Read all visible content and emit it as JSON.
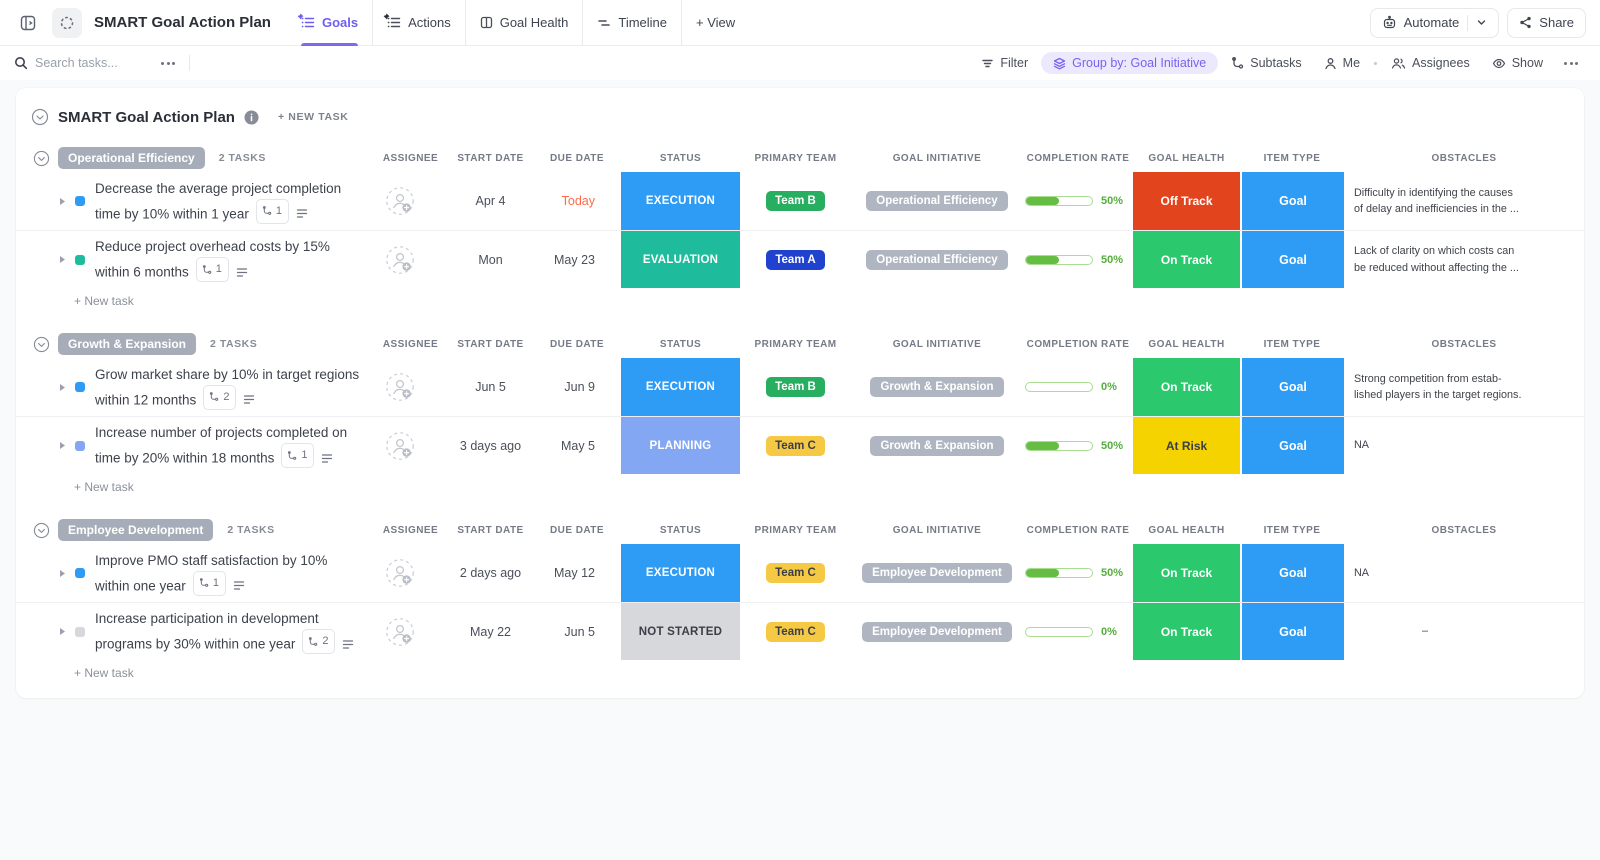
{
  "header": {
    "title": "SMART Goal Action Plan",
    "tabs": [
      {
        "label": "Goals",
        "icon": "list",
        "pinned": true,
        "active": true
      },
      {
        "label": "Actions",
        "icon": "list",
        "pinned": true,
        "active": false
      },
      {
        "label": "Goal Health",
        "icon": "board",
        "pinned": false,
        "active": false
      },
      {
        "label": "Timeline",
        "icon": "timeline",
        "pinned": false,
        "active": false
      },
      {
        "label": "View",
        "icon": "plus",
        "pinned": false,
        "active": false,
        "is_add": true
      }
    ],
    "automate_label": "Automate",
    "share_label": "Share"
  },
  "toolbar": {
    "search_placeholder": "Search tasks...",
    "filter_label": "Filter",
    "group_by_label": "Group by: Goal Initiative",
    "subtasks_label": "Subtasks",
    "me_label": "Me",
    "assignees_label": "Assignees",
    "show_label": "Show"
  },
  "page": {
    "title": "SMART Goal Action Plan",
    "new_task_label": "+ NEW TASK",
    "add_task_label": "+ New task"
  },
  "table": {
    "columns": [
      "ASSIGNEE",
      "START DATE",
      "DUE DATE",
      "STATUS",
      "PRIMARY TEAM",
      "GOAL INITIATIVE",
      "COMPLETION RATE",
      "GOAL HEALTH",
      "ITEM TYPE",
      "OBSTACLES"
    ]
  },
  "colors": {
    "accent_purple": "#7c6bf1",
    "execution_blue": "#2e9cf5",
    "evaluation_teal": "#1ebc9c",
    "planning_blue": "#84a7f3",
    "not_started_gray": "#d6d8db",
    "on_track_green": "#2bc86d",
    "off_track_red": "#e2451d",
    "at_risk_yellow": "#f5d300",
    "team_a_blue": "#2042cf",
    "team_b_green": "#27ae60",
    "team_c_yellow": "#f6c944",
    "initiative_gray": "#b0b6c1",
    "progress_green": "#66bd44",
    "today_orange": "#fd6b4c",
    "dark_text": "#3a3f47"
  },
  "groups": [
    {
      "name": "Operational Efficiency",
      "count": "2 TASKS",
      "tasks": [
        {
          "name": "Decrease the average project completion time by 10% within 1 year",
          "subtasks": "1",
          "has_description": false,
          "bullet": "#2e9cf5",
          "start_date": "Apr 4",
          "due_date": "Today",
          "due_today": true,
          "status": {
            "label": "EXECUTION",
            "bg": "#2e9cf5",
            "fg": "#ffffff"
          },
          "team": {
            "label": "Team B",
            "bg": "#27ae60",
            "fg": "#ffffff"
          },
          "initiative": "Operational Efficiency",
          "completion": {
            "pct": 50,
            "label": "50%"
          },
          "health": {
            "label": "Off Track",
            "bg": "#e2451d",
            "fg": "#ffffff"
          },
          "item_type": {
            "label": "Goal",
            "bg": "#2e9cf5",
            "fg": "#ffffff"
          },
          "obstacles": "Difficulty in identifying the causes\nof delay and inefficiencies in the ..."
        },
        {
          "name": "Reduce project overhead costs by 15% within 6 months",
          "subtasks": "1",
          "has_description": true,
          "bullet": "#1ebc9c",
          "start_date": "Mon",
          "due_date": "May 23",
          "due_today": false,
          "status": {
            "label": "EVALUATION",
            "bg": "#1ebc9c",
            "fg": "#ffffff"
          },
          "team": {
            "label": "Team A",
            "bg": "#2042cf",
            "fg": "#ffffff"
          },
          "initiative": "Operational Efficiency",
          "completion": {
            "pct": 50,
            "label": "50%"
          },
          "health": {
            "label": "On Track",
            "bg": "#2bc86d",
            "fg": "#ffffff"
          },
          "item_type": {
            "label": "Goal",
            "bg": "#2e9cf5",
            "fg": "#ffffff"
          },
          "obstacles": "Lack of clarity on which costs can\nbe reduced without affecting the ..."
        }
      ]
    },
    {
      "name": "Growth & Expansion",
      "count": "2 TASKS",
      "tasks": [
        {
          "name": "Grow market share by 10% in target regions within 12 months",
          "subtasks": "2",
          "has_description": false,
          "bullet": "#2e9cf5",
          "start_date": "Jun 5",
          "due_date": "Jun 9",
          "due_today": false,
          "status": {
            "label": "EXECUTION",
            "bg": "#2e9cf5",
            "fg": "#ffffff"
          },
          "team": {
            "label": "Team B",
            "bg": "#27ae60",
            "fg": "#ffffff"
          },
          "initiative": "Growth & Expansion",
          "completion": {
            "pct": 0,
            "label": "0%"
          },
          "health": {
            "label": "On Track",
            "bg": "#2bc86d",
            "fg": "#ffffff"
          },
          "item_type": {
            "label": "Goal",
            "bg": "#2e9cf5",
            "fg": "#ffffff"
          },
          "obstacles": "Strong competition from estab-\nlished players in the target regions."
        },
        {
          "name": "Increase number of projects completed on time by 20% within 18 months",
          "subtasks": "1",
          "has_description": false,
          "bullet": "#84a7f3",
          "start_date": "3 days ago",
          "due_date": "May 5",
          "due_today": false,
          "status": {
            "label": "PLANNING",
            "bg": "#84a7f3",
            "fg": "#ffffff"
          },
          "team": {
            "label": "Team C",
            "bg": "#f6c944",
            "fg": "#3a3f47"
          },
          "initiative": "Growth & Expansion",
          "completion": {
            "pct": 50,
            "label": "50%"
          },
          "health": {
            "label": "At Risk",
            "bg": "#f5d300",
            "fg": "#3a3f47"
          },
          "item_type": {
            "label": "Goal",
            "bg": "#2e9cf5",
            "fg": "#ffffff"
          },
          "obstacles": "NA"
        }
      ]
    },
    {
      "name": "Employee Development",
      "count": "2 TASKS",
      "tasks": [
        {
          "name": "Improve PMO staff satisfaction by 10% within one year",
          "subtasks": "1",
          "has_description": false,
          "bullet": "#2e9cf5",
          "start_date": "2 days ago",
          "due_date": "May 12",
          "due_today": false,
          "status": {
            "label": "EXECUTION",
            "bg": "#2e9cf5",
            "fg": "#ffffff"
          },
          "team": {
            "label": "Team C",
            "bg": "#f6c944",
            "fg": "#3a3f47"
          },
          "initiative": "Employee Development",
          "completion": {
            "pct": 50,
            "label": "50%"
          },
          "health": {
            "label": "On Track",
            "bg": "#2bc86d",
            "fg": "#ffffff"
          },
          "item_type": {
            "label": "Goal",
            "bg": "#2e9cf5",
            "fg": "#ffffff"
          },
          "obstacles": "NA"
        },
        {
          "name": "Increase participation in development programs by 30% within one year",
          "subtasks": "2",
          "has_description": false,
          "bullet": "#d6d8db",
          "start_date": "May 22",
          "due_date": "Jun 5",
          "due_today": false,
          "status": {
            "label": "NOT STARTED",
            "bg": "#d6d8db",
            "fg": "#3a3f47"
          },
          "team": {
            "label": "Team C",
            "bg": "#f6c944",
            "fg": "#3a3f47"
          },
          "initiative": "Employee Development",
          "completion": {
            "pct": 0,
            "label": "0%"
          },
          "health": {
            "label": "On Track",
            "bg": "#2bc86d",
            "fg": "#ffffff"
          },
          "item_type": {
            "label": "Goal",
            "bg": "#2e9cf5",
            "fg": "#ffffff"
          },
          "obstacles": "–"
        }
      ]
    }
  ]
}
